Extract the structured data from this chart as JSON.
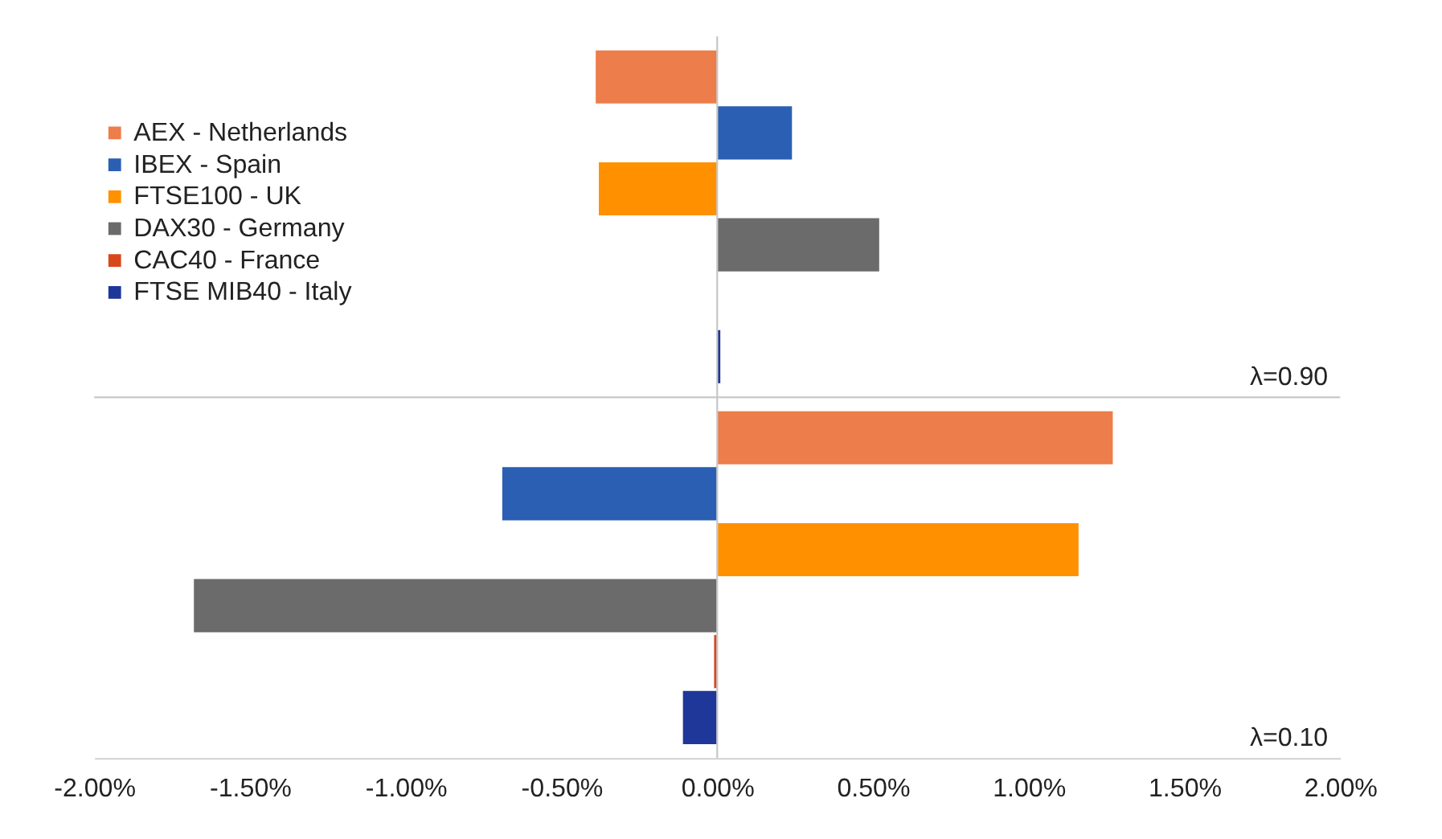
{
  "chart_data": {
    "type": "bar",
    "orientation": "horizontal",
    "categories": [
      null,
      null
    ],
    "annotations": [
      "λ=0.90",
      "λ=0.10"
    ],
    "series": [
      {
        "name": "AEX - Netherlands",
        "color": "#ed7d4a",
        "values": [
          -0.39,
          1.27
        ]
      },
      {
        "name": "IBEX - Spain",
        "color": "#2b5fb3",
        "values": [
          0.24,
          -0.69
        ]
      },
      {
        "name": "FTSE100 - UK",
        "color": "#ff9100",
        "values": [
          -0.38,
          1.16
        ]
      },
      {
        "name": "DAX30 - Germany",
        "color": "#6b6b6b",
        "values": [
          0.52,
          -1.68
        ]
      },
      {
        "name": "CAC40 - France",
        "color": "#d9481c",
        "values": [
          0.0,
          -0.01
        ]
      },
      {
        "name": "FTSE MIB40 - Italy",
        "color": "#1f3799",
        "values": [
          0.01,
          -0.11
        ]
      }
    ],
    "xlim": [
      -2,
      2
    ],
    "xticks": [
      {
        "value": -2,
        "label": "-2.00%"
      },
      {
        "value": -1.5,
        "label": "-1.50%"
      },
      {
        "value": -1,
        "label": "-1.00%"
      },
      {
        "value": -0.5,
        "label": "-0.50%"
      },
      {
        "value": 0,
        "label": "0.00%"
      },
      {
        "value": 0.5,
        "label": "0.50%"
      },
      {
        "value": 1,
        "label": "1.00%"
      },
      {
        "value": 1.5,
        "label": "1.50%"
      },
      {
        "value": 2,
        "label": "2.00%"
      }
    ],
    "ref_lines": [
      {
        "axis": "x",
        "value": 0,
        "color": "#c8c8c8"
      }
    ],
    "legend": "top left",
    "grid": false
  }
}
